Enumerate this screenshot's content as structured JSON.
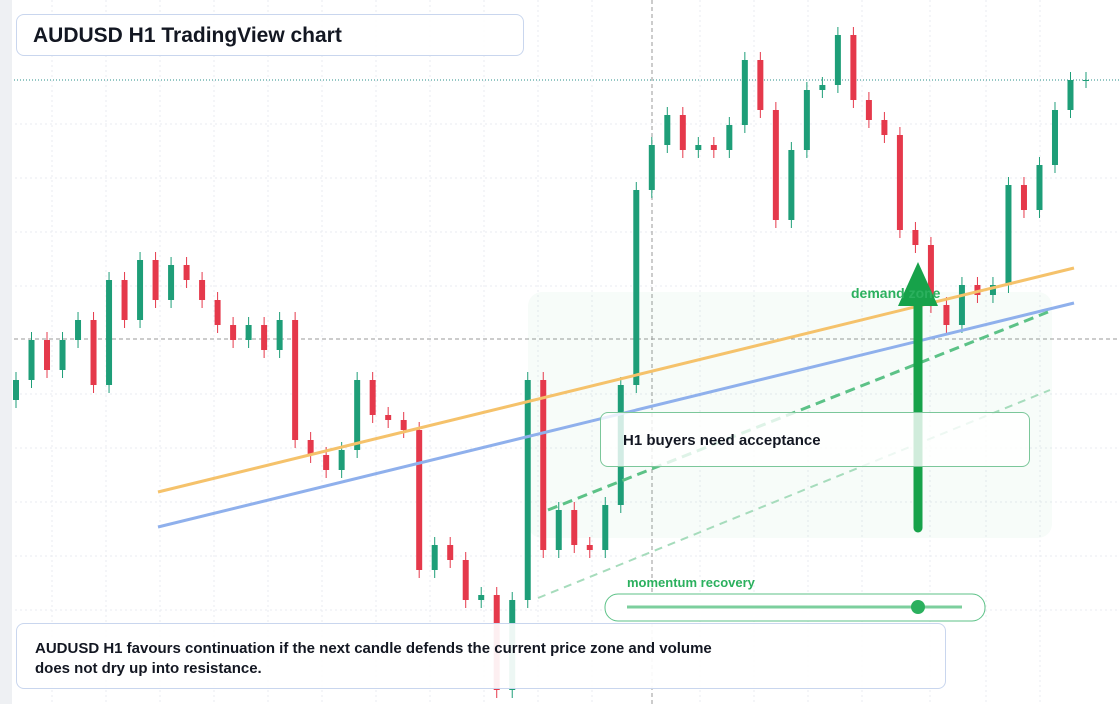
{
  "chart_data": {
    "type": "candlestick",
    "title": "AUDUSD H1 TradingView chart",
    "zone_label": "demand zone",
    "callout": "H1 buyers need acceptance",
    "slider_label": "momentum recovery",
    "note": "AUDUSD H1 favours continuation if the next candle defends the current price zone and volume does not dry up into resistance.",
    "ylim": [
      0,
      704
    ],
    "up_color": "#1e9e78",
    "down_color": "#e5394b",
    "open": [
      304,
      324,
      364,
      334,
      364,
      384,
      319,
      424,
      384,
      444,
      404,
      439,
      424,
      404,
      379,
      364,
      379,
      354,
      384,
      264,
      249,
      234,
      254,
      324,
      289,
      284,
      274,
      134,
      159,
      144,
      104,
      109,
      14,
      104,
      324,
      154,
      194,
      159,
      154,
      199,
      319,
      514,
      559,
      589,
      554,
      559,
      554,
      579,
      644,
      594,
      484,
      554,
      614,
      619,
      669,
      604,
      584,
      569,
      474,
      459,
      399,
      379,
      419,
      409,
      419,
      519,
      494,
      539,
      594,
      624
    ],
    "high": [
      332,
      372,
      372,
      372,
      392,
      392,
      432,
      432,
      452,
      452,
      447,
      447,
      432,
      412,
      387,
      387,
      387,
      392,
      392,
      272,
      257,
      262,
      332,
      332,
      297,
      292,
      282,
      167,
      167,
      152,
      117,
      117,
      112,
      332,
      332,
      202,
      202,
      167,
      207,
      327,
      522,
      567,
      597,
      597,
      567,
      567,
      587,
      652,
      652,
      602,
      562,
      622,
      627,
      677,
      677,
      612,
      592,
      577,
      482,
      467,
      407,
      427,
      427,
      427,
      527,
      527,
      547,
      602,
      632,
      632
    ],
    "low": [
      296,
      316,
      326,
      326,
      356,
      311,
      311,
      376,
      376,
      396,
      396,
      416,
      396,
      371,
      356,
      356,
      346,
      346,
      256,
      241,
      226,
      226,
      246,
      281,
      276,
      266,
      126,
      126,
      136,
      96,
      96,
      6,
      6,
      96,
      146,
      146,
      151,
      146,
      146,
      191,
      311,
      506,
      551,
      546,
      546,
      546,
      546,
      571,
      586,
      476,
      476,
      546,
      606,
      611,
      596,
      576,
      561,
      466,
      451,
      391,
      371,
      371,
      401,
      401,
      411,
      486,
      486,
      531,
      586,
      616
    ],
    "close": [
      324,
      364,
      334,
      364,
      384,
      319,
      424,
      384,
      444,
      404,
      439,
      424,
      404,
      379,
      364,
      379,
      354,
      384,
      264,
      249,
      234,
      254,
      324,
      289,
      284,
      274,
      134,
      159,
      144,
      104,
      109,
      14,
      104,
      324,
      154,
      194,
      159,
      154,
      199,
      319,
      514,
      559,
      589,
      554,
      559,
      554,
      579,
      644,
      594,
      484,
      554,
      614,
      619,
      669,
      604,
      584,
      569,
      474,
      459,
      399,
      379,
      419,
      409,
      419,
      519,
      494,
      539,
      594,
      624,
      624
    ]
  }
}
